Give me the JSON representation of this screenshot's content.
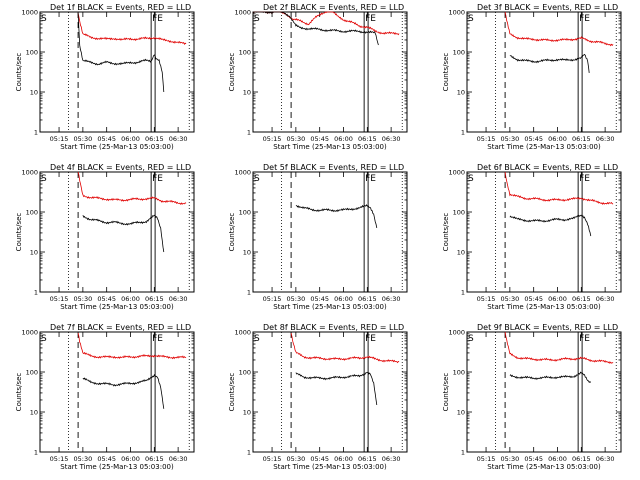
{
  "figure": {
    "colors": {
      "events": "#000000",
      "lld": "#e00000"
    }
  },
  "chart_data": [
    {
      "type": "line",
      "title": "Det 1f BLACK = Events, RED = LLD",
      "xlabel": "Start Time (25-Mar-13 05:03:00)",
      "ylabel": "Counts/sec",
      "yscale": "log",
      "ylim": [
        1,
        1000
      ],
      "y_ticks": [
        "1",
        "10",
        "100",
        "1000"
      ],
      "x_ticks": [
        "05:15",
        "05:30",
        "05:45",
        "06:00",
        "06:15",
        "06:30"
      ],
      "markers": {
        "start": "S",
        "end": "FE"
      },
      "series": [
        {
          "name": "Events",
          "color": "#000000",
          "x": [
            "05:27",
            "05:28",
            "05:30",
            "05:35",
            "05:40",
            "05:45",
            "05:50",
            "05:55",
            "06:00",
            "06:05",
            "06:10",
            "06:13",
            "06:15",
            "06:16",
            "06:18",
            "06:20",
            "06:21"
          ],
          "y": [
            1000,
            150,
            60,
            55,
            50,
            55,
            52,
            50,
            55,
            55,
            62,
            60,
            90,
            70,
            60,
            30,
            10
          ]
        },
        {
          "name": "LLD",
          "color": "#e00000",
          "x": [
            "05:27",
            "05:28",
            "05:30",
            "05:35",
            "05:40",
            "05:45",
            "05:50",
            "05:55",
            "06:00",
            "06:05",
            "06:10",
            "06:15",
            "06:20",
            "06:25",
            "06:30",
            "06:35"
          ],
          "y": [
            1000,
            600,
            280,
            230,
            220,
            210,
            220,
            200,
            215,
            210,
            220,
            230,
            200,
            190,
            170,
            160
          ]
        }
      ]
    },
    {
      "type": "line",
      "title": "Det 2f BLACK = Events, RED = LLD",
      "xlabel": "Start Time (25-Mar-13 05:03:00)",
      "ylabel": "Counts/sec",
      "yscale": "log",
      "ylim": [
        1,
        1000
      ],
      "y_ticks": [
        "1",
        "10",
        "100",
        "1000"
      ],
      "x_ticks": [
        "05:15",
        "05:30",
        "05:45",
        "06:00",
        "06:15",
        "06:30"
      ],
      "markers": {
        "start": "S",
        "end": "FE"
      },
      "series": [
        {
          "name": "Events",
          "color": "#000000",
          "x": [
            "05:03",
            "05:10",
            "05:15",
            "05:22",
            "05:26",
            "05:30",
            "05:33",
            "05:40",
            "05:50",
            "06:00",
            "06:10",
            "06:15",
            "06:20",
            "06:22"
          ],
          "y": [
            1000,
            1000,
            1000,
            1000,
            800,
            450,
            400,
            380,
            350,
            330,
            330,
            310,
            300,
            150
          ]
        },
        {
          "name": "LLD",
          "color": "#e00000",
          "x": [
            "05:03",
            "05:10",
            "05:15",
            "05:20",
            "05:24",
            "05:28",
            "05:33",
            "05:38",
            "05:42",
            "05:46",
            "05:50",
            "05:53",
            "05:56",
            "06:00",
            "06:05",
            "06:10",
            "06:15",
            "06:20",
            "06:25",
            "06:30",
            "06:35"
          ],
          "y": [
            1000,
            1000,
            1000,
            1000,
            900,
            650,
            600,
            500,
            700,
            900,
            1100,
            1000,
            800,
            650,
            550,
            450,
            420,
            330,
            300,
            290,
            290
          ]
        }
      ]
    },
    {
      "type": "line",
      "title": "Det 3f BLACK = Events, RED = LLD",
      "xlabel": "Start Time (25-Mar-13 05:03:00)",
      "ylabel": "Counts/sec",
      "yscale": "log",
      "ylim": [
        1,
        1000
      ],
      "y_ticks": [
        "1",
        "10",
        "100",
        "1000"
      ],
      "x_ticks": [
        "05:15",
        "05:30",
        "05:45",
        "06:00",
        "06:15",
        "06:30"
      ],
      "markers": {
        "start": "S",
        "end": "FE"
      },
      "series": [
        {
          "name": "Events",
          "color": "#000000",
          "x": [
            "05:30",
            "05:35",
            "05:40",
            "05:45",
            "05:50",
            "05:55",
            "06:00",
            "06:05",
            "06:10",
            "06:15",
            "06:17",
            "06:19",
            "06:20"
          ],
          "y": [
            80,
            65,
            60,
            58,
            60,
            62,
            65,
            62,
            65,
            70,
            85,
            60,
            30
          ]
        },
        {
          "name": "LLD",
          "color": "#e00000",
          "x": [
            "05:27",
            "05:28",
            "05:30",
            "05:35",
            "05:40",
            "05:45",
            "05:50",
            "05:55",
            "06:00",
            "06:05",
            "06:10",
            "06:15",
            "06:20",
            "06:25",
            "06:30",
            "06:35"
          ],
          "y": [
            1000,
            600,
            280,
            230,
            210,
            210,
            200,
            195,
            200,
            200,
            210,
            220,
            190,
            180,
            160,
            155
          ]
        }
      ]
    },
    {
      "type": "line",
      "title": "Det 4f BLACK = Events, RED = LLD",
      "xlabel": "Start Time (25-Mar-13 05:03:00)",
      "ylabel": "Counts/sec",
      "yscale": "log",
      "ylim": [
        1,
        1000
      ],
      "y_ticks": [
        "1",
        "10",
        "100",
        "1000"
      ],
      "x_ticks": [
        "05:15",
        "05:30",
        "05:45",
        "06:00",
        "06:15",
        "06:30"
      ],
      "markers": {
        "start": "S",
        "end": "FE"
      },
      "series": [
        {
          "name": "Events",
          "color": "#000000",
          "x": [
            "05:30",
            "05:35",
            "05:40",
            "05:45",
            "05:50",
            "05:55",
            "06:00",
            "06:05",
            "06:10",
            "06:15",
            "06:17",
            "06:19",
            "06:21"
          ],
          "y": [
            80,
            65,
            60,
            55,
            55,
            52,
            50,
            55,
            58,
            80,
            70,
            40,
            10
          ]
        },
        {
          "name": "LLD",
          "color": "#e00000",
          "x": [
            "05:27",
            "05:28",
            "05:30",
            "05:35",
            "05:40",
            "05:45",
            "05:50",
            "05:55",
            "06:00",
            "06:05",
            "06:10",
            "06:15",
            "06:20",
            "06:25",
            "06:30",
            "06:35"
          ],
          "y": [
            1000,
            600,
            260,
            230,
            220,
            210,
            200,
            200,
            205,
            210,
            215,
            220,
            190,
            180,
            170,
            165
          ]
        }
      ]
    },
    {
      "type": "line",
      "title": "Det 5f BLACK = Events, RED = LLD",
      "xlabel": "Start Time (25-Mar-13 05:03:00)",
      "ylabel": "Counts/sec",
      "yscale": "log",
      "ylim": [
        1,
        1000
      ],
      "y_ticks": [
        "1",
        "10",
        "100",
        "1000"
      ],
      "x_ticks": [
        "05:15",
        "05:30",
        "05:45",
        "06:00",
        "06:15",
        "06:30"
      ],
      "markers": {
        "start": "S",
        "end": "FE"
      },
      "series": [
        {
          "name": "Events",
          "color": "#000000",
          "x": [
            "05:30",
            "05:35",
            "05:40",
            "05:45",
            "05:50",
            "05:55",
            "06:00",
            "06:05",
            "06:10",
            "06:15",
            "06:17",
            "06:19",
            "06:21"
          ],
          "y": [
            150,
            125,
            115,
            110,
            112,
            110,
            112,
            120,
            125,
            145,
            130,
            90,
            40
          ]
        }
      ]
    },
    {
      "type": "line",
      "title": "Det 6f BLACK = Events, RED = LLD",
      "xlabel": "Start Time (25-Mar-13 05:03:00)",
      "ylabel": "Counts/sec",
      "yscale": "log",
      "ylim": [
        1,
        1000
      ],
      "y_ticks": [
        "1",
        "10",
        "100",
        "1000"
      ],
      "x_ticks": [
        "05:15",
        "05:30",
        "05:45",
        "06:00",
        "06:15",
        "06:30"
      ],
      "markers": {
        "start": "S",
        "end": "FE"
      },
      "series": [
        {
          "name": "Events",
          "color": "#000000",
          "x": [
            "05:30",
            "05:35",
            "05:40",
            "05:45",
            "05:50",
            "05:55",
            "06:00",
            "06:05",
            "06:10",
            "06:15",
            "06:17",
            "06:19",
            "06:21"
          ],
          "y": [
            80,
            65,
            62,
            60,
            60,
            62,
            65,
            65,
            68,
            85,
            75,
            50,
            25
          ]
        },
        {
          "name": "LLD",
          "color": "#e00000",
          "x": [
            "05:27",
            "05:28",
            "05:30",
            "05:35",
            "05:40",
            "05:45",
            "05:50",
            "05:55",
            "06:00",
            "06:05",
            "06:10",
            "06:15",
            "06:20",
            "06:25",
            "06:30",
            "06:35"
          ],
          "y": [
            1000,
            600,
            280,
            240,
            220,
            215,
            205,
            200,
            200,
            205,
            210,
            225,
            195,
            180,
            165,
            160
          ]
        }
      ]
    },
    {
      "type": "line",
      "title": "Det 7f BLACK = Events, RED = LLD",
      "xlabel": "Start Time (25-Mar-13 05:03:00)",
      "ylabel": "Counts/sec",
      "yscale": "log",
      "ylim": [
        1,
        1000
      ],
      "y_ticks": [
        "1",
        "10",
        "100",
        "1000"
      ],
      "x_ticks": [
        "05:15",
        "05:30",
        "05:45",
        "06:00",
        "06:15",
        "06:30"
      ],
      "markers": {
        "start": "S",
        "end": "FE"
      },
      "series": [
        {
          "name": "Events",
          "color": "#000000",
          "x": [
            "05:30",
            "05:35",
            "05:40",
            "05:45",
            "05:50",
            "05:55",
            "06:00",
            "06:05",
            "06:10",
            "06:15",
            "06:17",
            "06:19",
            "06:21"
          ],
          "y": [
            70,
            55,
            52,
            50,
            48,
            50,
            52,
            55,
            60,
            85,
            75,
            40,
            12
          ]
        },
        {
          "name": "LLD",
          "color": "#e00000",
          "x": [
            "05:27",
            "05:28",
            "05:30",
            "05:35",
            "05:40",
            "05:45",
            "05:50",
            "05:55",
            "06:00",
            "06:05",
            "06:10",
            "06:15",
            "06:20",
            "06:25",
            "06:30",
            "06:35"
          ],
          "y": [
            1000,
            600,
            300,
            250,
            240,
            235,
            240,
            230,
            240,
            245,
            250,
            260,
            240,
            235,
            230,
            230
          ]
        }
      ]
    },
    {
      "type": "line",
      "title": "Det 8f BLACK = Events, RED = LLD",
      "xlabel": "Start Time (25-Mar-13 05:03:00)",
      "ylabel": "Counts/sec",
      "yscale": "log",
      "ylim": [
        1,
        1000
      ],
      "y_ticks": [
        "1",
        "10",
        "100",
        "1000"
      ],
      "x_ticks": [
        "05:15",
        "05:30",
        "05:45",
        "06:00",
        "06:15",
        "06:30"
      ],
      "markers": {
        "start": "S",
        "end": "FE"
      },
      "series": [
        {
          "name": "Events",
          "color": "#000000",
          "x": [
            "05:30",
            "05:35",
            "05:40",
            "05:45",
            "05:50",
            "05:55",
            "06:00",
            "06:05",
            "06:10",
            "06:15",
            "06:17",
            "06:19",
            "06:21"
          ],
          "y": [
            90,
            75,
            72,
            70,
            70,
            72,
            75,
            78,
            80,
            100,
            85,
            50,
            15
          ]
        },
        {
          "name": "LLD",
          "color": "#e00000",
          "x": [
            "05:27",
            "05:28",
            "05:30",
            "05:35",
            "05:40",
            "05:45",
            "05:50",
            "05:55",
            "06:00",
            "06:05",
            "06:10",
            "06:15",
            "06:20",
            "06:25",
            "06:30",
            "06:35"
          ],
          "y": [
            1000,
            600,
            300,
            240,
            225,
            220,
            215,
            210,
            215,
            220,
            225,
            240,
            210,
            195,
            185,
            180
          ]
        }
      ]
    },
    {
      "type": "line",
      "title": "Det 9f BLACK = Events, RED = LLD",
      "xlabel": "Start Time (25-Mar-13 05:03:00)",
      "ylabel": "Counts/sec",
      "yscale": "log",
      "ylim": [
        1,
        1000
      ],
      "y_ticks": [
        "1",
        "10",
        "100",
        "1000"
      ],
      "x_ticks": [
        "05:15",
        "05:30",
        "05:45",
        "06:00",
        "06:15",
        "06:30"
      ],
      "markers": {
        "start": "S",
        "end": "FE"
      },
      "series": [
        {
          "name": "Events",
          "color": "#000000",
          "x": [
            "05:30",
            "05:35",
            "05:40",
            "05:45",
            "05:50",
            "05:55",
            "06:00",
            "06:05",
            "06:10",
            "06:15",
            "06:17",
            "06:19",
            "06:21"
          ],
          "y": [
            80,
            75,
            72,
            70,
            72,
            72,
            75,
            75,
            78,
            95,
            80,
            60,
            55
          ]
        },
        {
          "name": "LLD",
          "color": "#e00000",
          "x": [
            "05:27",
            "05:28",
            "05:30",
            "05:35",
            "05:40",
            "05:45",
            "05:50",
            "05:55",
            "06:00",
            "06:05",
            "06:10",
            "06:15",
            "06:20",
            "06:25",
            "06:30",
            "06:35"
          ],
          "y": [
            1000,
            600,
            280,
            230,
            215,
            210,
            205,
            200,
            205,
            210,
            215,
            220,
            200,
            190,
            180,
            175
          ]
        }
      ]
    }
  ]
}
